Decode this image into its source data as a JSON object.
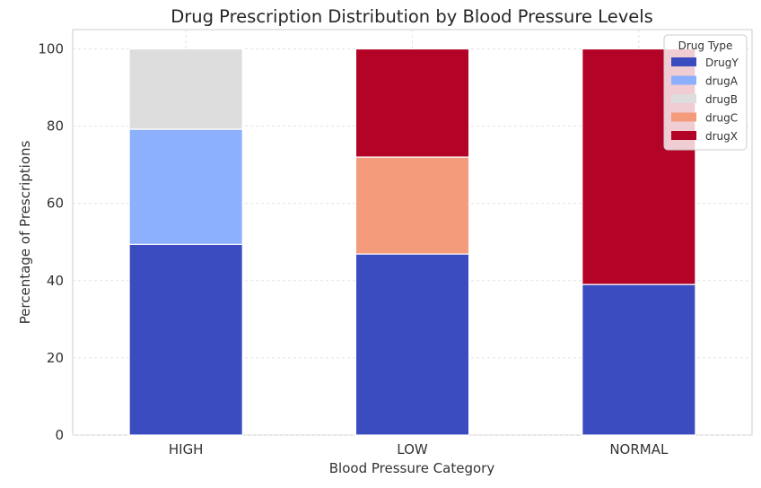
{
  "chart_data": {
    "type": "bar",
    "stacked": true,
    "title": "Drug Prescription Distribution by Blood Pressure Levels",
    "xlabel": "Blood Pressure Category",
    "ylabel": "Percentage of Prescriptions",
    "categories": [
      "HIGH",
      "LOW",
      "NORMAL"
    ],
    "ylim": [
      0,
      105
    ],
    "yticks": [
      0,
      20,
      40,
      60,
      80,
      100
    ],
    "grid": true,
    "legend": {
      "title": "Drug Type",
      "placement": "top-right"
    },
    "series": [
      {
        "name": "DrugY",
        "color": "#3a4cc0",
        "values": [
          49.4,
          46.9,
          39.0
        ]
      },
      {
        "name": "drugA",
        "color": "#8caffe",
        "values": [
          29.8,
          0,
          0
        ]
      },
      {
        "name": "drugB",
        "color": "#dddddd",
        "values": [
          20.8,
          0,
          0
        ]
      },
      {
        "name": "drugC",
        "color": "#f39b7b",
        "values": [
          0,
          25.1,
          0
        ]
      },
      {
        "name": "drugX",
        "color": "#b30326",
        "values": [
          0,
          28.0,
          61.0
        ]
      }
    ]
  }
}
